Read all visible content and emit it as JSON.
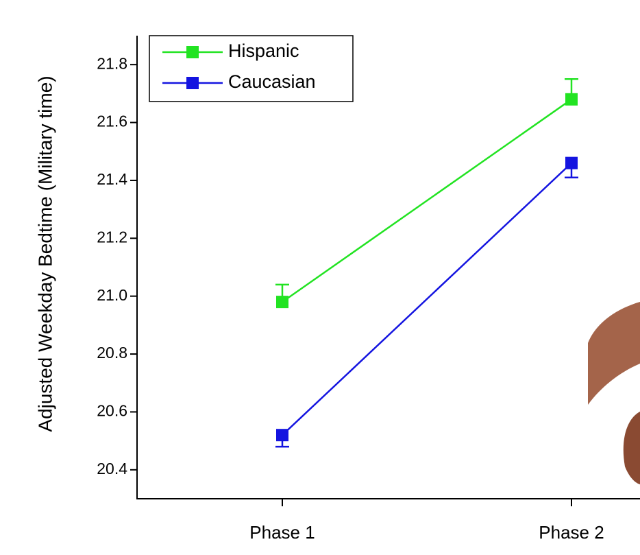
{
  "chart_data": {
    "type": "line",
    "y_label": "Adjusted Weekday Bedtime (Military time)",
    "categories": [
      "Phase 1",
      "Phase 2"
    ],
    "series": [
      {
        "name": "Hispanic",
        "color": "#22e322",
        "values": [
          20.98,
          21.68
        ],
        "errors": [
          0.06,
          0.07
        ]
      },
      {
        "name": "Caucasian",
        "color": "#1414e0",
        "values": [
          20.52,
          21.46
        ],
        "errors": [
          0.04,
          0.05
        ]
      }
    ],
    "ylim": [
      20.3,
      21.9
    ],
    "yticks": [
      {
        "value": 20.4,
        "label": "20.4"
      },
      {
        "value": 20.6,
        "label": "20.6"
      },
      {
        "value": 20.8,
        "label": "20.8"
      },
      {
        "value": 21.0,
        "label": "21.0"
      },
      {
        "value": 21.2,
        "label": "21.2"
      },
      {
        "value": 21.4,
        "label": "21.4"
      },
      {
        "value": 21.6,
        "label": "21.6"
      },
      {
        "value": 21.8,
        "label": "21.8"
      }
    ],
    "legend": "upper left"
  }
}
